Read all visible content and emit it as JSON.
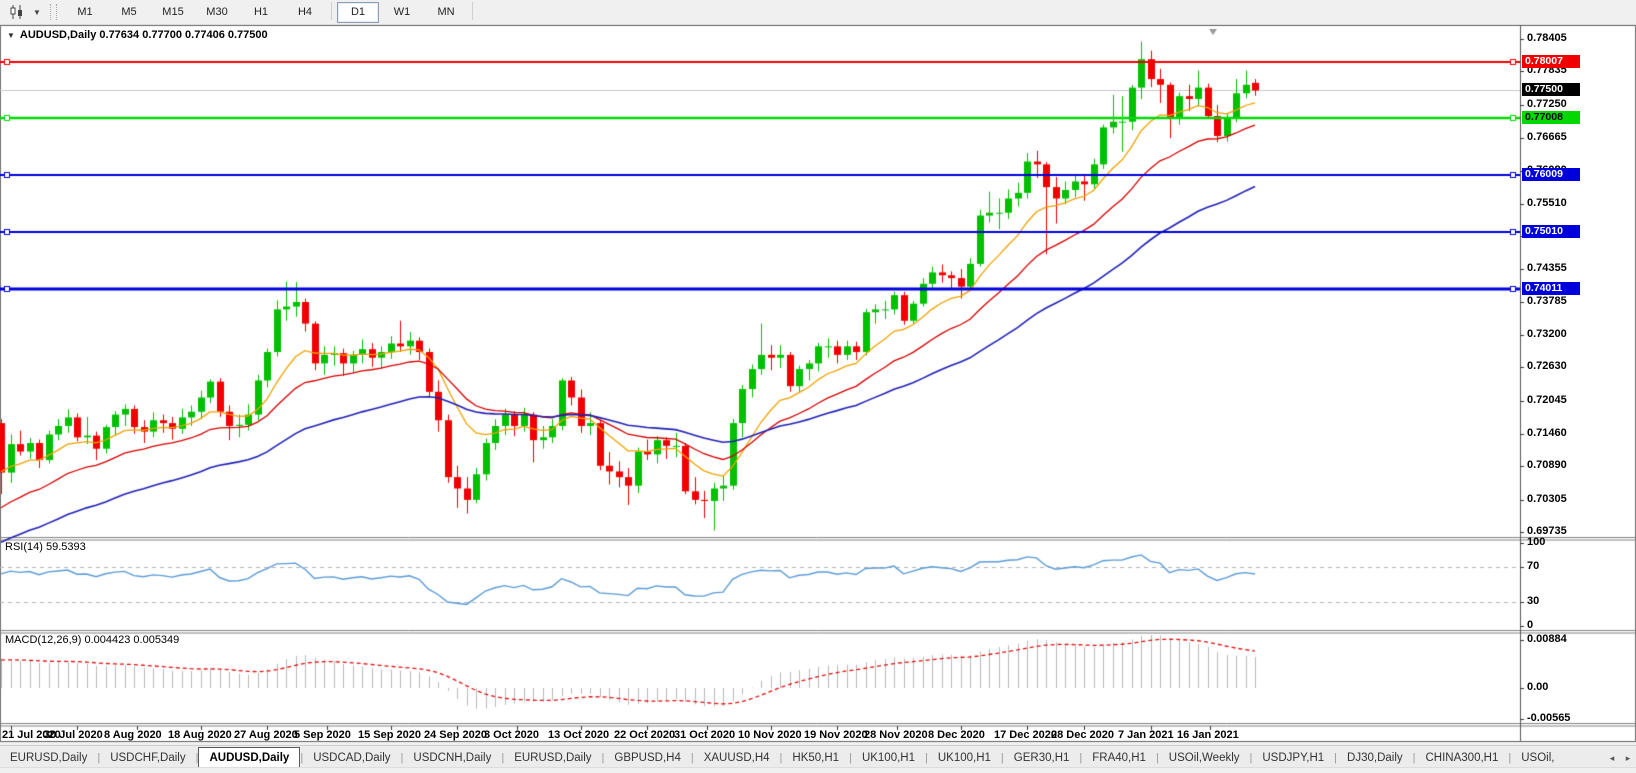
{
  "toolbar": {
    "chart_type_icon": "candlestick-chart-icon",
    "dropdown_icon": "chevron-down-icon",
    "timeframes": [
      "M1",
      "M5",
      "M15",
      "M30",
      "H1",
      "H4",
      "D1",
      "W1",
      "MN"
    ],
    "active_timeframe": "D1"
  },
  "chart_header": {
    "collapse_icon": "▼",
    "symbol": "AUDUSD,Daily",
    "open": "0.77634",
    "high": "0.77700",
    "low": "0.77406",
    "close": "0.77500"
  },
  "chart_data": {
    "type": "candlestick",
    "symbol": "AUDUSD",
    "timeframe": "Daily",
    "ylim": [
      0.69735,
      0.78405
    ],
    "colors": {
      "bull": "#00c000",
      "bear": "#f00000",
      "wick_bull": "#00a000",
      "wick_bear": "#d00000",
      "bid_line": "#c8c8c8"
    },
    "price_ticks": [
      {
        "label": "0.78405",
        "value": 0.78405
      },
      {
        "label": "0.77835",
        "value": 0.77835
      },
      {
        "label": "0.77250",
        "value": 0.7725
      },
      {
        "label": "0.76665",
        "value": 0.76665
      },
      {
        "label": "0.76080",
        "value": 0.7608
      },
      {
        "label": "0.75510",
        "value": 0.7551
      },
      {
        "label": "0.74940",
        "value": 0.7494
      },
      {
        "label": "0.74355",
        "value": 0.74355
      },
      {
        "label": "0.73785",
        "value": 0.73785
      },
      {
        "label": "0.73200",
        "value": 0.732
      },
      {
        "label": "0.72630",
        "value": 0.7263
      },
      {
        "label": "0.72045",
        "value": 0.72045
      },
      {
        "label": "0.71460",
        "value": 0.7146
      },
      {
        "label": "0.70890",
        "value": 0.7089
      },
      {
        "label": "0.70305",
        "value": 0.70305
      },
      {
        "label": "0.69735",
        "value": 0.69735
      }
    ],
    "date_labels": [
      {
        "text": "21 Jul 2020",
        "bar": 1
      },
      {
        "text": "30 Jul 2020",
        "bar": 8
      },
      {
        "text": "8 Aug 2020",
        "bar": 14.3
      },
      {
        "text": "18 Aug 2020",
        "bar": 21
      },
      {
        "text": "27 Aug 2020",
        "bar": 28
      },
      {
        "text": "5 Sep 2020",
        "bar": 34.3
      },
      {
        "text": "15 Sep 2020",
        "bar": 41
      },
      {
        "text": "24 Sep 2020",
        "bar": 48
      },
      {
        "text": "3 Oct 2020",
        "bar": 54.3
      },
      {
        "text": "13 Oct 2020",
        "bar": 61
      },
      {
        "text": "22 Oct 2020",
        "bar": 68
      },
      {
        "text": "31 Oct 2020",
        "bar": 74.3
      },
      {
        "text": "10 Nov 2020",
        "bar": 81
      },
      {
        "text": "19 Nov 2020",
        "bar": 88
      },
      {
        "text": "28 Nov 2020",
        "bar": 94.3
      },
      {
        "text": "8 Dec 2020",
        "bar": 101
      },
      {
        "text": "17 Dec 2020",
        "bar": 108
      },
      {
        "text": "28 Dec 2020",
        "bar": 114
      },
      {
        "text": "7 Jan 2021",
        "bar": 121
      },
      {
        "text": "16 Jan 2021",
        "bar": 127.3
      }
    ],
    "current_price": {
      "value": 0.775,
      "label": "0.77500",
      "badge_bg": "#000000",
      "badge_fg": "#ffffff"
    },
    "hlines": [
      {
        "price": 0.78007,
        "label": "0.78007",
        "color": "#f00000",
        "width": 2,
        "badge_bg": "#f00000",
        "badge_fg": "#ffffff"
      },
      {
        "price": 0.77008,
        "label": "0.77008",
        "color": "#00d800",
        "width": 2.5,
        "badge_bg": "#00d800",
        "badge_fg": "#000000"
      },
      {
        "price": 0.76009,
        "label": "0.76009",
        "color": "#0000dc",
        "width": 2,
        "badge_bg": "#0000dc",
        "badge_fg": "#ffffff"
      },
      {
        "price": 0.7501,
        "label": "0.75010",
        "color": "#0000dc",
        "width": 2,
        "badge_bg": "#0000dc",
        "badge_fg": "#ffffff"
      },
      {
        "price": 0.74011,
        "label": "0.74011",
        "color": "#0000dc",
        "width": 3,
        "badge_bg": "#0000dc",
        "badge_fg": "#ffffff"
      }
    ],
    "moving_averages": [
      {
        "name": "fast",
        "period": 10,
        "seed": 0.708,
        "color": "#eea200",
        "width": 1.3
      },
      {
        "name": "medium",
        "period": 21,
        "seed": 0.701,
        "color": "#d40000",
        "width": 1.3
      },
      {
        "name": "slow",
        "period": 45,
        "seed": 0.695,
        "color": "#2020b4",
        "width": 1.6
      }
    ],
    "rsi": {
      "label": "RSI(14) 59.5393",
      "period": 14,
      "current": 59.5393,
      "levels": [
        70,
        30
      ],
      "axis_ticks": [
        {
          "label": "100",
          "value": 100
        },
        {
          "label": "70",
          "value": 70
        },
        {
          "label": "30",
          "value": 30
        },
        {
          "label": "0",
          "value": 0
        }
      ],
      "ylim": [
        0,
        100
      ],
      "color": "#5b9bd5",
      "seed_avg_gain": 0.0028,
      "seed_avg_loss": 0.0017
    },
    "macd": {
      "label": "MACD(12,26,9) 0.004423 0.005349",
      "params": [
        12,
        26,
        9
      ],
      "macd_current": 0.004423,
      "signal_current": 0.005349,
      "axis_ticks": [
        {
          "label": "0.00884",
          "value": 0.00884
        },
        {
          "label": "0.00",
          "value": 0
        },
        {
          "label": "-0.00565",
          "value": -0.00565
        }
      ],
      "ylim": [
        -0.0068,
        0.0098
      ],
      "hist_color": "#b8b8b8",
      "signal_color": "#e01010",
      "seed_offset": 0.0055,
      "signal_seed": 0.0052
    },
    "candles": [
      [
        0.7165,
        0.7172,
        0.704,
        0.7078
      ],
      [
        0.7078,
        0.7145,
        0.706,
        0.7128
      ],
      [
        0.7128,
        0.7152,
        0.7108,
        0.7115
      ],
      [
        0.7115,
        0.7139,
        0.7102,
        0.713
      ],
      [
        0.713,
        0.7136,
        0.7086,
        0.71
      ],
      [
        0.71,
        0.7152,
        0.7094,
        0.7145
      ],
      [
        0.7145,
        0.7172,
        0.7135,
        0.716
      ],
      [
        0.716,
        0.7189,
        0.7148,
        0.7175
      ],
      [
        0.7175,
        0.7182,
        0.7133,
        0.714
      ],
      [
        0.714,
        0.7176,
        0.7128,
        0.7143
      ],
      [
        0.7143,
        0.715,
        0.71,
        0.712
      ],
      [
        0.712,
        0.7162,
        0.7112,
        0.7158
      ],
      [
        0.7158,
        0.7186,
        0.7144,
        0.718
      ],
      [
        0.718,
        0.7198,
        0.716,
        0.719
      ],
      [
        0.719,
        0.7196,
        0.7146,
        0.7158
      ],
      [
        0.7158,
        0.717,
        0.713,
        0.715
      ],
      [
        0.715,
        0.7184,
        0.714,
        0.717
      ],
      [
        0.717,
        0.718,
        0.7148,
        0.7165
      ],
      [
        0.7165,
        0.7176,
        0.7136,
        0.7155
      ],
      [
        0.7155,
        0.719,
        0.7146,
        0.7175
      ],
      [
        0.7175,
        0.7196,
        0.716,
        0.7185
      ],
      [
        0.7185,
        0.7222,
        0.7172,
        0.721
      ],
      [
        0.721,
        0.7242,
        0.72,
        0.7238
      ],
      [
        0.7238,
        0.7244,
        0.7176,
        0.7185
      ],
      [
        0.7185,
        0.7196,
        0.7135,
        0.716
      ],
      [
        0.716,
        0.718,
        0.714,
        0.7162
      ],
      [
        0.7162,
        0.7198,
        0.7152,
        0.718
      ],
      [
        0.718,
        0.725,
        0.717,
        0.724
      ],
      [
        0.724,
        0.7296,
        0.7228,
        0.729
      ],
      [
        0.729,
        0.7381,
        0.7282,
        0.7365
      ],
      [
        0.7365,
        0.7414,
        0.7345,
        0.737
      ],
      [
        0.737,
        0.7413,
        0.7352,
        0.7378
      ],
      [
        0.7378,
        0.7384,
        0.7326,
        0.734
      ],
      [
        0.734,
        0.7344,
        0.7258,
        0.727
      ],
      [
        0.727,
        0.73,
        0.725,
        0.7285
      ],
      [
        0.7285,
        0.73,
        0.7266,
        0.7288
      ],
      [
        0.7288,
        0.7296,
        0.7248,
        0.727
      ],
      [
        0.727,
        0.7292,
        0.7254,
        0.7285
      ],
      [
        0.7285,
        0.7312,
        0.727,
        0.7295
      ],
      [
        0.7295,
        0.7306,
        0.7264,
        0.728
      ],
      [
        0.728,
        0.73,
        0.726,
        0.729
      ],
      [
        0.729,
        0.7318,
        0.7278,
        0.7305
      ],
      [
        0.7305,
        0.7345,
        0.729,
        0.73
      ],
      [
        0.73,
        0.7325,
        0.7285,
        0.731
      ],
      [
        0.731,
        0.7316,
        0.7276,
        0.729
      ],
      [
        0.729,
        0.7296,
        0.721,
        0.722
      ],
      [
        0.722,
        0.724,
        0.715,
        0.717
      ],
      [
        0.717,
        0.718,
        0.706,
        0.707
      ],
      [
        0.707,
        0.709,
        0.7016,
        0.705
      ],
      [
        0.705,
        0.707,
        0.7006,
        0.703
      ],
      [
        0.703,
        0.7086,
        0.7024,
        0.7075
      ],
      [
        0.7075,
        0.7138,
        0.7064,
        0.713
      ],
      [
        0.713,
        0.7172,
        0.7118,
        0.716
      ],
      [
        0.716,
        0.719,
        0.7144,
        0.718
      ],
      [
        0.718,
        0.7186,
        0.7142,
        0.716
      ],
      [
        0.716,
        0.7192,
        0.715,
        0.718
      ],
      [
        0.718,
        0.7184,
        0.7096,
        0.7135
      ],
      [
        0.7135,
        0.716,
        0.712,
        0.714
      ],
      [
        0.714,
        0.7172,
        0.713,
        0.716
      ],
      [
        0.716,
        0.7244,
        0.7152,
        0.724
      ],
      [
        0.724,
        0.7246,
        0.7196,
        0.721
      ],
      [
        0.721,
        0.7224,
        0.7148,
        0.716
      ],
      [
        0.716,
        0.7184,
        0.7144,
        0.7165
      ],
      [
        0.7165,
        0.717,
        0.7082,
        0.709
      ],
      [
        0.709,
        0.7114,
        0.7057,
        0.708
      ],
      [
        0.708,
        0.7098,
        0.7052,
        0.707
      ],
      [
        0.707,
        0.7086,
        0.7021,
        0.7055
      ],
      [
        0.7055,
        0.7122,
        0.7042,
        0.7115
      ],
      [
        0.7115,
        0.7136,
        0.71,
        0.711
      ],
      [
        0.711,
        0.7142,
        0.7094,
        0.7135
      ],
      [
        0.7135,
        0.714,
        0.7102,
        0.7125
      ],
      [
        0.7125,
        0.7148,
        0.7105,
        0.7125
      ],
      [
        0.7125,
        0.713,
        0.704,
        0.7045
      ],
      [
        0.7045,
        0.707,
        0.7022,
        0.703
      ],
      [
        0.703,
        0.7046,
        0.6998,
        0.7028
      ],
      [
        0.7028,
        0.706,
        0.6976,
        0.705
      ],
      [
        0.705,
        0.7072,
        0.7028,
        0.7055
      ],
      [
        0.7055,
        0.7172,
        0.7048,
        0.7165
      ],
      [
        0.7165,
        0.7232,
        0.714,
        0.7225
      ],
      [
        0.7225,
        0.7268,
        0.721,
        0.726
      ],
      [
        0.726,
        0.734,
        0.725,
        0.7285
      ],
      [
        0.7285,
        0.7302,
        0.7258,
        0.728
      ],
      [
        0.728,
        0.7302,
        0.7262,
        0.7285
      ],
      [
        0.7285,
        0.729,
        0.722,
        0.723
      ],
      [
        0.723,
        0.7266,
        0.722,
        0.726
      ],
      [
        0.726,
        0.7276,
        0.724,
        0.727
      ],
      [
        0.727,
        0.7306,
        0.7256,
        0.73
      ],
      [
        0.73,
        0.7314,
        0.728,
        0.73
      ],
      [
        0.73,
        0.731,
        0.727,
        0.7285
      ],
      [
        0.7285,
        0.731,
        0.7276,
        0.73
      ],
      [
        0.73,
        0.7308,
        0.7276,
        0.729
      ],
      [
        0.729,
        0.7366,
        0.7284,
        0.736
      ],
      [
        0.736,
        0.7374,
        0.734,
        0.7365
      ],
      [
        0.7365,
        0.738,
        0.7348,
        0.7365
      ],
      [
        0.7365,
        0.7396,
        0.7356,
        0.739
      ],
      [
        0.739,
        0.7396,
        0.7338,
        0.7345
      ],
      [
        0.7345,
        0.738,
        0.734,
        0.7375
      ],
      [
        0.7375,
        0.742,
        0.737,
        0.741
      ],
      [
        0.741,
        0.744,
        0.74,
        0.743
      ],
      [
        0.743,
        0.7444,
        0.7412,
        0.7425
      ],
      [
        0.7425,
        0.7432,
        0.74,
        0.742
      ],
      [
        0.742,
        0.7436,
        0.7384,
        0.7405
      ],
      [
        0.7405,
        0.7455,
        0.7398,
        0.7445
      ],
      [
        0.7445,
        0.754,
        0.744,
        0.753
      ],
      [
        0.753,
        0.7572,
        0.7518,
        0.7535
      ],
      [
        0.7535,
        0.756,
        0.7506,
        0.7535
      ],
      [
        0.7535,
        0.7576,
        0.7524,
        0.756
      ],
      [
        0.756,
        0.7588,
        0.7546,
        0.757
      ],
      [
        0.757,
        0.764,
        0.756,
        0.7625
      ],
      [
        0.7625,
        0.7644,
        0.7596,
        0.762
      ],
      [
        0.762,
        0.7624,
        0.7462,
        0.758
      ],
      [
        0.758,
        0.7598,
        0.7516,
        0.756
      ],
      [
        0.756,
        0.759,
        0.755,
        0.7575
      ],
      [
        0.7575,
        0.76,
        0.7562,
        0.759
      ],
      [
        0.759,
        0.7602,
        0.7556,
        0.7585
      ],
      [
        0.7585,
        0.763,
        0.7576,
        0.762
      ],
      [
        0.762,
        0.769,
        0.7612,
        0.7685
      ],
      [
        0.7685,
        0.7742,
        0.7674,
        0.7695
      ],
      [
        0.7695,
        0.774,
        0.7642,
        0.7695
      ],
      [
        0.7695,
        0.776,
        0.768,
        0.7755
      ],
      [
        0.7755,
        0.7836,
        0.7735,
        0.7805
      ],
      [
        0.7805,
        0.782,
        0.7756,
        0.777
      ],
      [
        0.777,
        0.7788,
        0.7728,
        0.776
      ],
      [
        0.776,
        0.7764,
        0.7666,
        0.77
      ],
      [
        0.77,
        0.7746,
        0.769,
        0.774
      ],
      [
        0.774,
        0.776,
        0.7714,
        0.7735
      ],
      [
        0.7735,
        0.7785,
        0.7722,
        0.7755
      ],
      [
        0.7755,
        0.7762,
        0.77,
        0.7705
      ],
      [
        0.7705,
        0.7724,
        0.7659,
        0.767
      ],
      [
        0.767,
        0.771,
        0.766,
        0.77
      ],
      [
        0.77,
        0.777,
        0.7694,
        0.7745
      ],
      [
        0.7745,
        0.7785,
        0.7736,
        0.776
      ],
      [
        0.77634,
        0.777,
        0.77406,
        0.775
      ]
    ]
  },
  "bottom_tabs": {
    "tabs": [
      "EURUSD,Daily",
      "USDCHF,Daily",
      "AUDUSD,Daily",
      "USDCAD,Daily",
      "USDCNH,Daily",
      "EURUSD,Daily",
      "GBPUSD,H4",
      "XAUUSD,H4",
      "HK50,H1",
      "UK100,H1",
      "UK100,H1",
      "GER30,H1",
      "FRA40,H1",
      "USOil,Weekly",
      "USDJPY,H1",
      "DJ30,Daily",
      "CHINA300,H1",
      "USOil,"
    ],
    "active_index": 2,
    "scroll_left_icon": "◂",
    "scroll_right_icon": "▸"
  }
}
